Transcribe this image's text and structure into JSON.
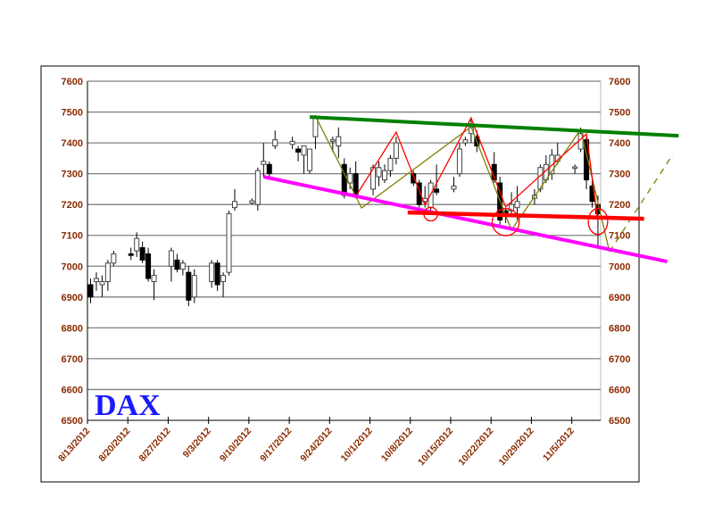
{
  "chart_data": {
    "type": "candlestick",
    "title": "DAX",
    "xlabel": "",
    "ylabel": "",
    "ylim": [
      6500,
      7600
    ],
    "yticks": [
      7600,
      7500,
      7400,
      7300,
      7200,
      7100,
      7000,
      6900,
      6800,
      6700,
      6600,
      6500
    ],
    "y_axis_both_sides": true,
    "grid": "horizontal",
    "xtick_labels": [
      "8/13/2012",
      "8/20/2012",
      "8/27/2012",
      "9/3/2012",
      "9/10/2012",
      "9/17/2012",
      "9/24/2012",
      "10/1/2012",
      "10/8/2012",
      "10/15/2012",
      "10/22/2012",
      "10/29/2012",
      "11/5/2012"
    ],
    "xtick_dates": [
      "2012-08-13",
      "2012-08-20",
      "2012-08-27",
      "2012-09-03",
      "2012-09-10",
      "2012-09-17",
      "2012-09-24",
      "2012-10-01",
      "2012-10-08",
      "2012-10-15",
      "2012-10-22",
      "2012-10-29",
      "2012-11-05"
    ],
    "xlim": [
      "2012-08-13",
      "2012-11-10"
    ],
    "colors": {
      "up_body": "#ffffff",
      "down_body": "#000000",
      "wick": "#000000",
      "grid": "#808080",
      "label": "#8b2a00",
      "title": "#1a1aff"
    },
    "candles": [
      [
        "2012-08-13",
        6940,
        6960,
        6880,
        6900
      ],
      [
        "2012-08-14",
        6950,
        6980,
        6920,
        6960
      ],
      [
        "2012-08-15",
        6940,
        6970,
        6900,
        6950
      ],
      [
        "2012-08-16",
        6950,
        7020,
        6920,
        7010
      ],
      [
        "2012-08-17",
        7010,
        7050,
        7000,
        7040
      ],
      [
        "2012-08-20",
        7040,
        7060,
        7020,
        7035
      ],
      [
        "2012-08-21",
        7050,
        7110,
        7030,
        7090
      ],
      [
        "2012-08-22",
        7060,
        7080,
        7010,
        7020
      ],
      [
        "2012-08-23",
        7040,
        7060,
        6950,
        6960
      ],
      [
        "2012-08-24",
        6950,
        6990,
        6890,
        6970
      ],
      [
        "2012-08-27",
        7000,
        7060,
        6950,
        7050
      ],
      [
        "2012-08-28",
        7020,
        7040,
        6980,
        6990
      ],
      [
        "2012-08-29",
        6990,
        7020,
        6970,
        7010
      ],
      [
        "2012-08-30",
        6980,
        7000,
        6870,
        6890
      ],
      [
        "2012-08-31",
        6900,
        6990,
        6880,
        6970
      ],
      [
        "2012-09-03",
        6950,
        7020,
        6930,
        7010
      ],
      [
        "2012-09-04",
        7010,
        7020,
        6920,
        6940
      ],
      [
        "2012-09-05",
        6950,
        6980,
        6900,
        6970
      ],
      [
        "2012-09-06",
        6980,
        7180,
        6970,
        7170
      ],
      [
        "2012-09-07",
        7190,
        7250,
        7180,
        7210
      ],
      [
        "2012-09-10",
        7205,
        7220,
        7200,
        7212
      ],
      [
        "2012-09-11",
        7200,
        7320,
        7180,
        7310
      ],
      [
        "2012-09-12",
        7330,
        7400,
        7290,
        7340
      ],
      [
        "2012-09-13",
        7330,
        7340,
        7290,
        7300
      ],
      [
        "2012-09-14",
        7390,
        7440,
        7380,
        7410
      ],
      [
        "2012-09-17",
        7395,
        7420,
        7380,
        7405
      ],
      [
        "2012-09-18",
        7380,
        7390,
        7340,
        7370
      ],
      [
        "2012-09-19",
        7360,
        7390,
        7300,
        7390
      ],
      [
        "2012-09-20",
        7310,
        7380,
        7300,
        7380
      ],
      [
        "2012-09-21",
        7420,
        7490,
        7380,
        7480
      ],
      [
        "2012-09-24",
        7405,
        7420,
        7370,
        7410
      ],
      [
        "2012-09-25",
        7390,
        7450,
        7350,
        7420
      ],
      [
        "2012-09-26",
        7330,
        7350,
        7220,
        7230
      ],
      [
        "2012-09-27",
        7270,
        7320,
        7250,
        7300
      ],
      [
        "2012-09-28",
        7300,
        7340,
        7220,
        7230
      ],
      [
        "2012-10-01",
        7250,
        7330,
        7230,
        7320
      ],
      [
        "2012-10-02",
        7290,
        7340,
        7260,
        7320
      ],
      [
        "2012-10-03",
        7280,
        7330,
        7270,
        7310
      ],
      [
        "2012-10-04",
        7310,
        7360,
        7290,
        7350
      ],
      [
        "2012-10-05",
        7350,
        7420,
        7330,
        7400
      ],
      [
        "2012-10-08",
        7300,
        7310,
        7260,
        7270
      ],
      [
        "2012-10-09",
        7270,
        7280,
        7190,
        7200
      ],
      [
        "2012-10-10",
        7210,
        7260,
        7190,
        7220
      ],
      [
        "2012-10-11",
        7190,
        7280,
        7180,
        7270
      ],
      [
        "2012-10-12",
        7250,
        7330,
        7230,
        7240
      ],
      [
        "2012-10-15",
        7250,
        7290,
        7240,
        7260
      ],
      [
        "2012-10-16",
        7300,
        7400,
        7290,
        7380
      ],
      [
        "2012-10-17",
        7400,
        7420,
        7390,
        7410
      ],
      [
        "2012-10-18",
        7430,
        7480,
        7400,
        7450
      ],
      [
        "2012-10-19",
        7420,
        7440,
        7370,
        7390
      ],
      [
        "2012-10-22",
        7330,
        7370,
        7270,
        7280
      ],
      [
        "2012-10-23",
        7270,
        7290,
        7130,
        7150
      ],
      [
        "2012-10-24",
        7180,
        7190,
        7140,
        7170
      ],
      [
        "2012-10-25",
        7180,
        7240,
        7170,
        7200
      ],
      [
        "2012-10-26",
        7190,
        7260,
        7150,
        7210
      ],
      [
        "2012-10-29",
        7220,
        7250,
        7200,
        7230
      ],
      [
        "2012-10-30",
        7250,
        7330,
        7240,
        7320
      ],
      [
        "2012-10-31",
        7280,
        7360,
        7270,
        7330
      ],
      [
        "2012-11-01",
        7300,
        7380,
        7280,
        7360
      ],
      [
        "2012-11-02",
        7340,
        7400,
        7330,
        7360
      ],
      [
        "2012-11-05",
        7320,
        7330,
        7300,
        7322
      ],
      [
        "2012-11-06",
        7380,
        7450,
        7370,
        7430
      ],
      [
        "2012-11-07",
        7410,
        7420,
        7250,
        7280
      ],
      [
        "2012-11-08",
        7260,
        7290,
        7190,
        7210
      ],
      [
        "2012-11-09",
        7200,
        7230,
        7060,
        7170
      ]
    ],
    "annotations": {
      "resistance_line": {
        "color": "#008000",
        "points": [
          [
            "2012-09-20",
            7484
          ],
          [
            "2012-11-23",
            7423
          ]
        ]
      },
      "support_line": {
        "color": "#ff00ff",
        "points": [
          [
            "2012-09-12",
            7290
          ],
          [
            "2012-11-21",
            7015
          ]
        ]
      },
      "neckline": {
        "color": "#ff0000",
        "points": [
          [
            "2012-10-07",
            7174
          ],
          [
            "2012-11-17",
            7154
          ]
        ]
      },
      "red_zigzag": {
        "color": "#ff0000",
        "points": [
          [
            "2012-09-28",
            7227
          ],
          [
            "2012-10-05",
            7435
          ],
          [
            "2012-10-10",
            7198
          ],
          [
            "2012-10-18",
            7481
          ],
          [
            "2012-10-24",
            7192
          ],
          [
            "2012-11-07",
            7429
          ],
          [
            "2012-11-09",
            7145
          ]
        ]
      },
      "olive_zigzag": {
        "color": "#808000",
        "points": [
          [
            "2012-09-21",
            7487
          ],
          [
            "2012-09-29",
            7189
          ],
          [
            "2012-10-18",
            7452
          ],
          [
            "2012-10-25",
            7117
          ],
          [
            "2012-11-06",
            7444
          ],
          [
            "2012-11-11",
            7047
          ]
        ]
      },
      "olive_dashed_projection": {
        "color": "#808000",
        "points": [
          [
            "2012-11-11",
            7047
          ],
          [
            "2012-11-22",
            7363
          ]
        ]
      },
      "circles": [
        {
          "date": "2012-10-11",
          "price": 7169,
          "radius_pts": 22,
          "color": "#ff0000"
        },
        {
          "date": "2012-10-24",
          "price": 7143,
          "radius_pts": 44,
          "color": "#ff0000"
        },
        {
          "date": "2012-11-09",
          "price": 7145,
          "radius_pts": 42,
          "color": "#ff0000"
        }
      ]
    }
  }
}
